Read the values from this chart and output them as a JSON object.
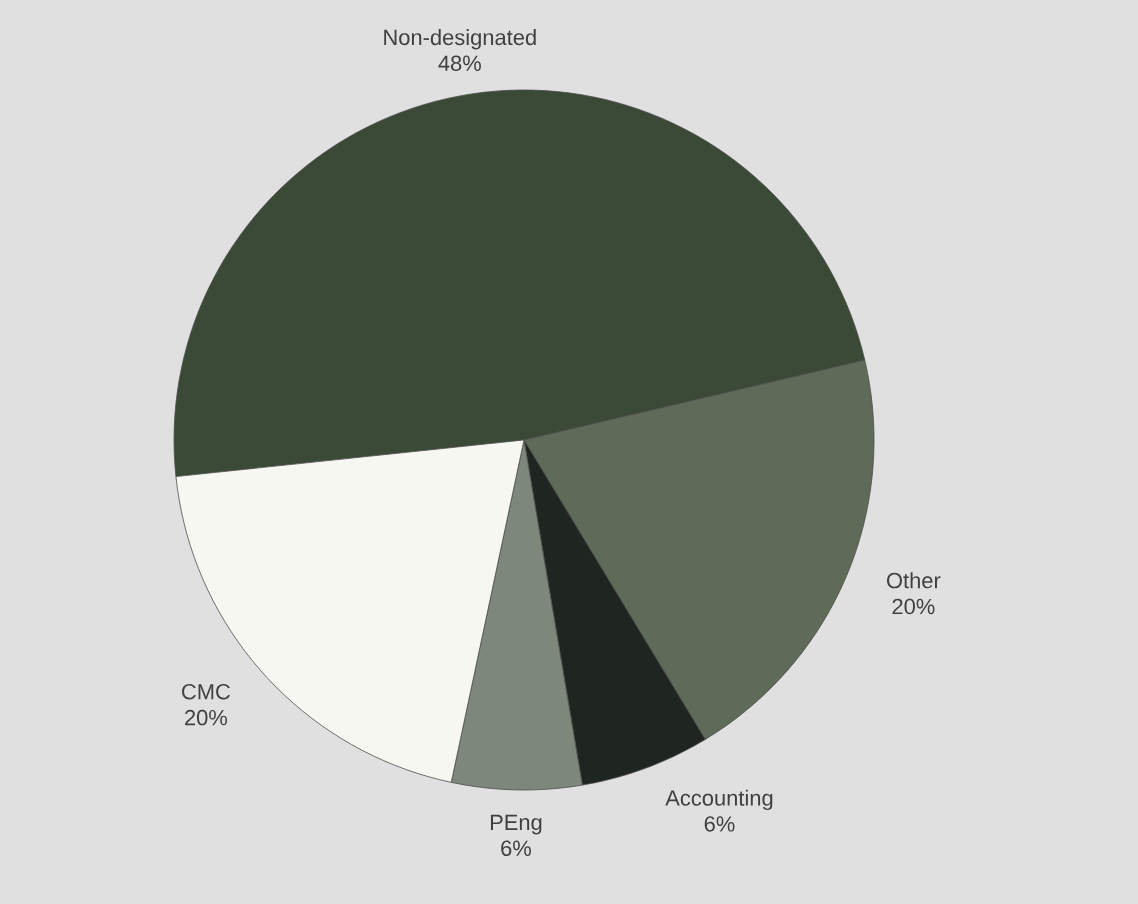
{
  "chart_data": {
    "type": "pie",
    "categories": [
      "Non-designated",
      "Other",
      "Accounting",
      "PEng",
      "CMC"
    ],
    "values": [
      48,
      20,
      6,
      6,
      20
    ],
    "value_labels": [
      "48%",
      "20%",
      "6%",
      "6%",
      "20%"
    ],
    "colors": [
      "#3b4a36",
      "#5d6b58",
      "#1f2621",
      "#7d877b",
      "#f7f7f2"
    ]
  }
}
